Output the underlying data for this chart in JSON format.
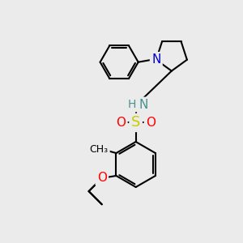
{
  "bg_color": "#ebebeb",
  "line_color": "#000000",
  "bond_width": 1.5,
  "font_size": 11,
  "atom_colors": {
    "N_blue": "#0000cc",
    "N_teal": "#4a9090",
    "S": "#cccc00",
    "O": "#ff0000",
    "C": "#000000"
  },
  "layout": {
    "xlim": [
      0,
      10
    ],
    "ylim": [
      0,
      10
    ]
  }
}
